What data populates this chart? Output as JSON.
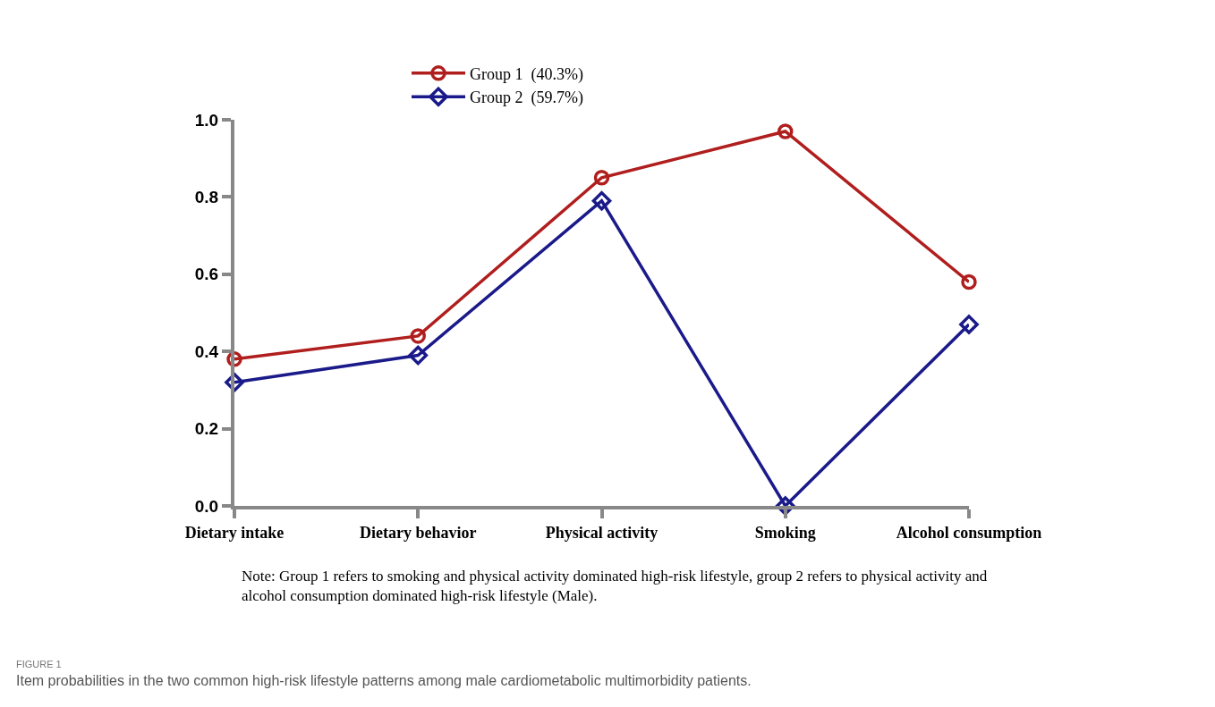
{
  "chart_data": {
    "type": "line",
    "categories": [
      "Dietary intake",
      "Dietary behavior",
      "Physical activity",
      "Smoking",
      "Alcohol consumption"
    ],
    "series": [
      {
        "name": "Group 1  (40.3%)",
        "color": "#b01e1e",
        "marker": "circle",
        "values": [
          0.38,
          0.44,
          0.85,
          0.97,
          0.58
        ]
      },
      {
        "name": "Group 2  (59.7%)",
        "color": "#1a1a8a",
        "marker": "diamond",
        "values": [
          0.32,
          0.39,
          0.79,
          0.0,
          0.47
        ]
      }
    ],
    "ylim": [
      0,
      1
    ],
    "yticks": [
      {
        "value": 0,
        "label": "0.0"
      },
      0.2,
      0.4,
      0.6,
      0.8,
      {
        "value": 1,
        "label": "1.0"
      }
    ],
    "grid": false,
    "legend": "top",
    "line_style": "solid",
    "annotations": [
      "Note: Group 1 refers to smoking and physical activity dominated high-risk lifestyle, group 2 refers to physical activity and alcohol consumption dominated high-risk lifestyle (Male).",
      "FIGURE 1",
      "Item probabilities in the two common high-risk lifestyle patterns among male cardiometabolic multimorbidity patients."
    ]
  }
}
